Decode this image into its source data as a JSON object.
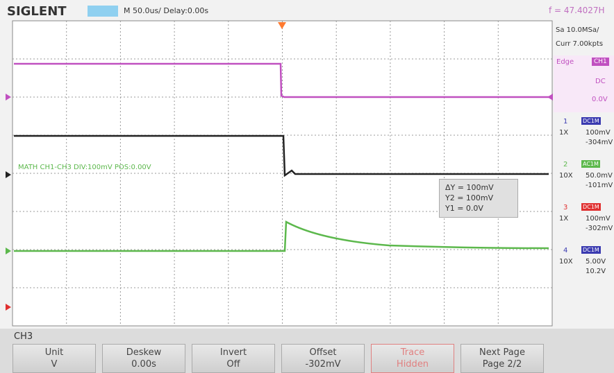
{
  "header": {
    "brand": "SIGLENT",
    "timebase": "M 50.0us/ Delay:0.00s",
    "frequency": "f = 47.4027H"
  },
  "side": {
    "sample_rate": "Sa 10.0MSa/",
    "memory": "Curr 7.00kpts",
    "trigger_type": "Edge",
    "trigger_source": "CH1",
    "trigger_coupling": "DC",
    "trigger_level": "0.0V",
    "channels": [
      {
        "num": "1",
        "coupling": "DC1M",
        "probe": "1X",
        "scale": "100mV",
        "offset": "-304mV"
      },
      {
        "num": "2",
        "coupling": "AC1M",
        "probe": "10X",
        "scale": "50.0mV",
        "offset": "-101mV"
      },
      {
        "num": "3",
        "coupling": "DC1M",
        "probe": "1X",
        "scale": "100mV",
        "offset": "-302mV"
      },
      {
        "num": "4",
        "coupling": "DC1M",
        "probe": "10X",
        "scale": "5.00V",
        "offset": "10.2V"
      }
    ]
  },
  "math_label": "MATH  CH1-CH3  DIV:100mV  POS:0.00V",
  "cursor": {
    "delta": "ΔY = 100mV",
    "y2": "Y2 = 100mV",
    "y1": "Y1 = 0.0V"
  },
  "menu": {
    "title": "CH3",
    "buttons": [
      {
        "label": "Unit",
        "value": "V"
      },
      {
        "label": "Deskew",
        "value": "0.00s"
      },
      {
        "label": "Invert",
        "value": "Off"
      },
      {
        "label": "Offset",
        "value": "-302mV"
      },
      {
        "label": "Trace",
        "value": "Hidden"
      },
      {
        "label": "Next Page",
        "value": "Page 2/2"
      }
    ]
  }
}
